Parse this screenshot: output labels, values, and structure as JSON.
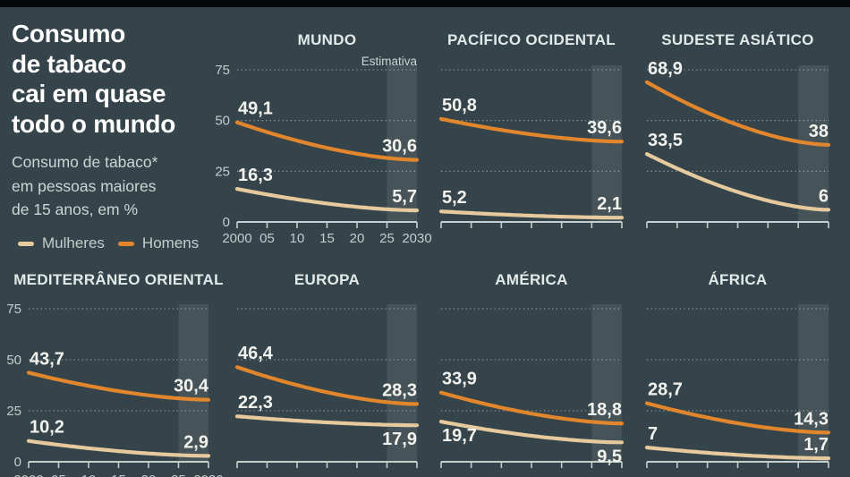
{
  "header": {
    "title": "Consumo\nde tabaco\ncai em quase\ntodo o mundo",
    "subtitle": "Consumo de tabaco*\nem pessoas maiores\nde 15 anos, em %"
  },
  "legend": {
    "items": [
      {
        "name": "Mulheres",
        "label": "Mulheres"
      },
      {
        "name": "Homens",
        "label": "Homens"
      }
    ]
  },
  "colors": {
    "background": "#35444a",
    "topbar": "#06090b",
    "homens": "#e1862c",
    "mulheres": "#e6c99d",
    "estimate_band": "rgba(255,255,255,0.085)",
    "gridline": "rgba(225,235,235,0.65)",
    "axis": "#c4cecd"
  },
  "axis": {
    "x_ticks": [
      "2000",
      "05",
      "10",
      "15",
      "20",
      "25",
      "2030"
    ],
    "y_ticks": [
      "0",
      "25",
      "50",
      "75"
    ],
    "estimativa_label": "Estimativa"
  },
  "chart_data": [
    {
      "type": "line",
      "region": "MUNDO",
      "slug": "mundo",
      "x_range": [
        2000,
        2030
      ],
      "ylim": [
        0,
        75
      ],
      "estimate_period": [
        2025,
        2030
      ],
      "series": [
        {
          "name": "Homens",
          "values": [
            49.1,
            30.6
          ],
          "labels": [
            "49,1",
            "30,6"
          ],
          "label_side": [
            "above",
            "above"
          ]
        },
        {
          "name": "Mulheres",
          "values": [
            16.3,
            5.7
          ],
          "labels": [
            "16,3",
            "5,7"
          ],
          "label_side": [
            "above",
            "above"
          ]
        }
      ],
      "layout": {
        "row": 0,
        "col": 1,
        "show_y_labels": true,
        "show_x_labels": true,
        "show_estimativa": true
      }
    },
    {
      "type": "line",
      "region": "PACÍFICO OCIDENTAL",
      "slug": "pacifico-ocidental",
      "x_range": [
        2000,
        2030
      ],
      "ylim": [
        0,
        75
      ],
      "estimate_period": [
        2025,
        2030
      ],
      "series": [
        {
          "name": "Homens",
          "values": [
            50.8,
            39.6
          ],
          "labels": [
            "50,8",
            "39,6"
          ],
          "label_side": [
            "above",
            "above"
          ]
        },
        {
          "name": "Mulheres",
          "values": [
            5.2,
            2.1
          ],
          "labels": [
            "5,2",
            "2,1"
          ],
          "label_side": [
            "above",
            "above"
          ]
        }
      ],
      "layout": {
        "row": 0,
        "col": 2,
        "show_y_labels": false,
        "show_x_labels": false,
        "show_estimativa": false
      }
    },
    {
      "type": "line",
      "region": "SUDESTE ASIÁTICO",
      "slug": "sudeste-asiatico",
      "x_range": [
        2000,
        2030
      ],
      "ylim": [
        0,
        75
      ],
      "estimate_period": [
        2025,
        2030
      ],
      "series": [
        {
          "name": "Homens",
          "values": [
            68.9,
            38
          ],
          "labels": [
            "68,9",
            "38"
          ],
          "label_side": [
            "above",
            "above"
          ]
        },
        {
          "name": "Mulheres",
          "values": [
            33.5,
            6
          ],
          "labels": [
            "33,5",
            "6"
          ],
          "label_side": [
            "above",
            "above"
          ]
        }
      ],
      "layout": {
        "row": 0,
        "col": 3,
        "show_y_labels": false,
        "show_x_labels": false,
        "show_estimativa": false
      }
    },
    {
      "type": "line",
      "region": "MEDITERRÂNEO ORIENTAL",
      "slug": "mediterraneo-oriental",
      "x_range": [
        2000,
        2030
      ],
      "ylim": [
        0,
        75
      ],
      "estimate_period": [
        2025,
        2030
      ],
      "series": [
        {
          "name": "Homens",
          "values": [
            43.7,
            30.4
          ],
          "labels": [
            "43,7",
            "30,4"
          ],
          "label_side": [
            "above",
            "above"
          ]
        },
        {
          "name": "Mulheres",
          "values": [
            10.2,
            2.9
          ],
          "labels": [
            "10,2",
            "2,9"
          ],
          "label_side": [
            "above",
            "above"
          ]
        }
      ],
      "layout": {
        "row": 1,
        "col": 0,
        "show_y_labels": true,
        "show_x_labels": true,
        "show_estimativa": false
      }
    },
    {
      "type": "line",
      "region": "EUROPA",
      "slug": "europa",
      "x_range": [
        2000,
        2030
      ],
      "ylim": [
        0,
        75
      ],
      "estimate_period": [
        2025,
        2030
      ],
      "series": [
        {
          "name": "Homens",
          "values": [
            46.4,
            28.3
          ],
          "labels": [
            "46,4",
            "28,3"
          ],
          "label_side": [
            "above",
            "above"
          ]
        },
        {
          "name": "Mulheres",
          "values": [
            22.3,
            17.9
          ],
          "labels": [
            "22,3",
            "17,9"
          ],
          "label_side": [
            "above",
            "below"
          ]
        }
      ],
      "layout": {
        "row": 1,
        "col": 1,
        "show_y_labels": false,
        "show_x_labels": false,
        "show_estimativa": false
      }
    },
    {
      "type": "line",
      "region": "AMÉRICA",
      "slug": "america",
      "x_range": [
        2000,
        2030
      ],
      "ylim": [
        0,
        75
      ],
      "estimate_period": [
        2025,
        2030
      ],
      "series": [
        {
          "name": "Homens",
          "values": [
            33.9,
            18.8
          ],
          "labels": [
            "33,9",
            "18,8"
          ],
          "label_side": [
            "above",
            "above"
          ]
        },
        {
          "name": "Mulheres",
          "values": [
            19.7,
            9.5
          ],
          "labels": [
            "19,7",
            "9,5"
          ],
          "label_side": [
            "below",
            "below"
          ]
        }
      ],
      "layout": {
        "row": 1,
        "col": 2,
        "show_y_labels": false,
        "show_x_labels": false,
        "show_estimativa": false
      }
    },
    {
      "type": "line",
      "region": "ÁFRICA",
      "slug": "africa",
      "x_range": [
        2000,
        2030
      ],
      "ylim": [
        0,
        75
      ],
      "estimate_period": [
        2025,
        2030
      ],
      "series": [
        {
          "name": "Homens",
          "values": [
            28.7,
            14.3
          ],
          "labels": [
            "28,7",
            "14,3"
          ],
          "label_side": [
            "above",
            "above"
          ]
        },
        {
          "name": "Mulheres",
          "values": [
            7,
            1.7
          ],
          "labels": [
            "7",
            "1,7"
          ],
          "label_side": [
            "above",
            "above"
          ]
        }
      ],
      "layout": {
        "row": 1,
        "col": 3,
        "show_y_labels": false,
        "show_x_labels": false,
        "show_estimativa": false
      }
    }
  ]
}
